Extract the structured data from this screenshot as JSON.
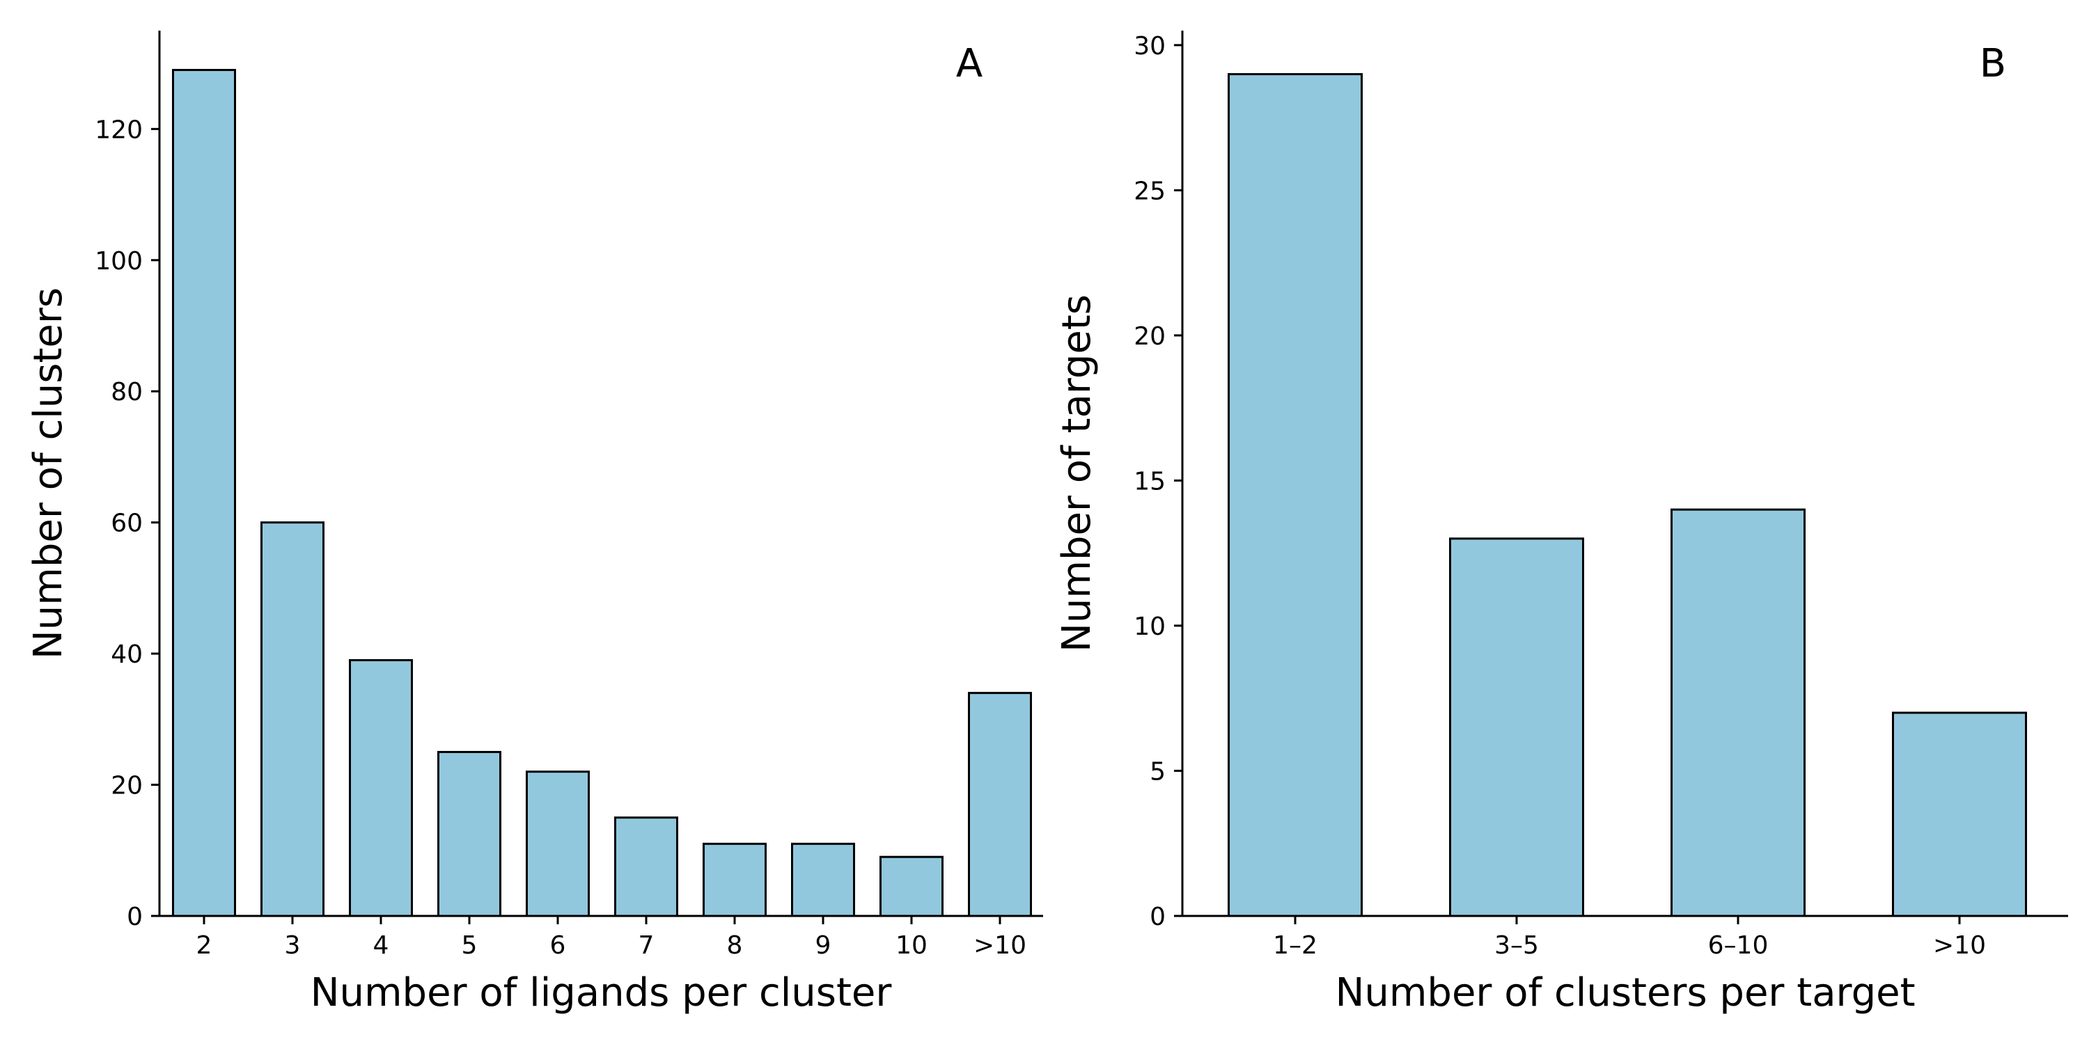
{
  "chart_data": [
    {
      "type": "bar",
      "panel": "A",
      "xlabel": "Number of ligands per cluster",
      "ylabel": "Number of clusters",
      "categories": [
        "2",
        "3",
        "4",
        "5",
        "6",
        "7",
        "8",
        "9",
        "10",
        ">10"
      ],
      "values": [
        129,
        60,
        39,
        25,
        22,
        15,
        11,
        11,
        9,
        34
      ],
      "ylim": [
        0,
        135
      ],
      "yticks": [
        0,
        20,
        40,
        60,
        80,
        100,
        120
      ],
      "grid": false,
      "bar_color": "#92c8de",
      "edge_color": "#000000"
    },
    {
      "type": "bar",
      "panel": "B",
      "xlabel": "Number of clusters per target",
      "ylabel": "Number of targets",
      "categories": [
        "1–2",
        "3–5",
        "6–10",
        ">10"
      ],
      "values": [
        29,
        13,
        14,
        7
      ],
      "ylim": [
        0,
        30.5
      ],
      "yticks": [
        0,
        5,
        10,
        15,
        20,
        25,
        30
      ],
      "grid": false,
      "bar_color": "#92c8de",
      "edge_color": "#000000"
    }
  ]
}
